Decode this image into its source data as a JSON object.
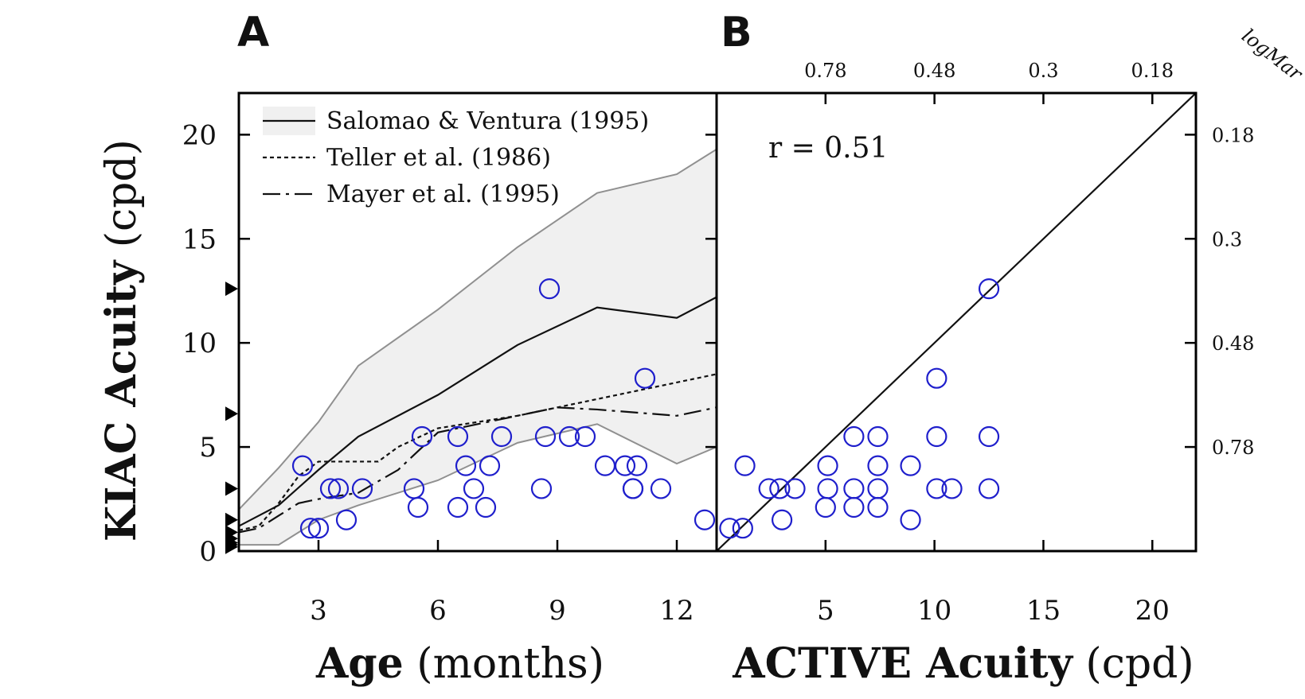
{
  "chart_data": [
    {
      "panel": "A",
      "type": "line",
      "xlabel_bold": "Age",
      "xlabel_rest": " (months)",
      "ylabel_bold": "KIAC Acuity",
      "ylabel_rest": " (cpd)",
      "xlim": [
        1,
        13
      ],
      "ylim": [
        0,
        22
      ],
      "xticks": [
        3,
        6,
        9,
        12
      ],
      "yticks": [
        0,
        5,
        10,
        15,
        20
      ],
      "legend": {
        "position": "top-left",
        "entries": [
          "Salomao & Ventura (1995)",
          "Teller et al. (1986)",
          "Mayer et al. (1995)"
        ]
      },
      "band": {
        "name": "Salomao & Ventura (1995)",
        "x": [
          1,
          2,
          3,
          4,
          6,
          8,
          10,
          12,
          13
        ],
        "upper": [
          2.0,
          4.0,
          6.2,
          8.9,
          11.6,
          14.6,
          17.2,
          18.1,
          19.3
        ],
        "lower": [
          0.3,
          0.3,
          1.5,
          2.2,
          3.4,
          5.2,
          6.1,
          4.2,
          5.0
        ]
      },
      "series": [
        {
          "name": "Salomao & Ventura (1995)",
          "style": "solid",
          "x": [
            1,
            2,
            3,
            4,
            6,
            8,
            10,
            12,
            13
          ],
          "y": [
            1.2,
            2.2,
            3.9,
            5.5,
            7.5,
            9.9,
            11.7,
            11.2,
            12.2
          ]
        },
        {
          "name": "Teller et al. (1986)",
          "style": "dotted",
          "x": [
            1,
            1.5,
            2,
            2.5,
            3,
            3.5,
            4,
            4.5,
            5,
            6,
            8,
            10,
            13
          ],
          "y": [
            1.0,
            1.2,
            2.3,
            3.6,
            4.3,
            4.3,
            4.3,
            4.3,
            5.0,
            5.9,
            6.5,
            7.3,
            8.5
          ]
        },
        {
          "name": "Mayer et al. (1995)",
          "style": "dashdot",
          "x": [
            1,
            1.5,
            2,
            2.5,
            3,
            4,
            5,
            6,
            7,
            8,
            9,
            10,
            12,
            13
          ],
          "y": [
            0.9,
            1.1,
            1.7,
            2.3,
            2.5,
            2.8,
            3.9,
            5.7,
            6.1,
            6.5,
            6.9,
            6.8,
            6.5,
            6.9
          ]
        }
      ],
      "points": [
        [
          2.6,
          4.1
        ],
        [
          2.8,
          1.1
        ],
        [
          3.0,
          1.1
        ],
        [
          3.3,
          3.0
        ],
        [
          3.5,
          3.0
        ],
        [
          3.7,
          1.5
        ],
        [
          4.1,
          3.0
        ],
        [
          5.4,
          3.0
        ],
        [
          5.5,
          2.1
        ],
        [
          5.6,
          5.5
        ],
        [
          6.5,
          2.1
        ],
        [
          6.5,
          5.5
        ],
        [
          6.7,
          4.1
        ],
        [
          6.9,
          3.0
        ],
        [
          7.2,
          2.1
        ],
        [
          7.3,
          4.1
        ],
        [
          7.6,
          5.5
        ],
        [
          8.6,
          3.0
        ],
        [
          8.7,
          5.5
        ],
        [
          8.8,
          12.6
        ],
        [
          9.3,
          5.5
        ],
        [
          9.7,
          5.5
        ],
        [
          10.2,
          4.1
        ],
        [
          10.7,
          4.1
        ],
        [
          10.9,
          3.0
        ],
        [
          10.9,
          3.0
        ],
        [
          11.0,
          4.1
        ],
        [
          11.2,
          8.3
        ],
        [
          11.6,
          3.0
        ],
        [
          12.7,
          1.5
        ]
      ],
      "left_markers_y": [
        12.6,
        6.6,
        3.0,
        1.5,
        0.9,
        0.6,
        0.4,
        0.3,
        0.2
      ],
      "colors": {
        "points": "#1f1fcc",
        "band": "#f0f0f0",
        "band_edge": "#909090",
        "lines": "#111111"
      }
    },
    {
      "panel": "B",
      "type": "scatter",
      "xlabel_bold": "ACTIVE Acuity",
      "xlabel_rest": " (cpd)",
      "top_axis_label": "logMar",
      "xlim": [
        0,
        22
      ],
      "ylim": [
        0,
        22
      ],
      "xticks": [
        5,
        10,
        15,
        20
      ],
      "top_ticks": [
        {
          "label": "0.78",
          "cpd": 5
        },
        {
          "label": "0.48",
          "cpd": 10
        },
        {
          "label": "0.3",
          "cpd": 15
        },
        {
          "label": "0.18",
          "cpd": 20
        }
      ],
      "right_ticks": [
        {
          "label": "0.18",
          "cpd": 20
        },
        {
          "label": "0.3",
          "cpd": 15
        },
        {
          "label": "0.48",
          "cpd": 10
        },
        {
          "label": "0.78",
          "cpd": 5
        }
      ],
      "annotation": "r = 0.51",
      "identity_line": true,
      "points": [
        [
          0.6,
          1.1
        ],
        [
          1.2,
          1.1
        ],
        [
          1.3,
          4.1
        ],
        [
          2.4,
          3.0
        ],
        [
          2.9,
          3.0
        ],
        [
          3.0,
          1.5
        ],
        [
          3.6,
          3.0
        ],
        [
          5.0,
          2.1
        ],
        [
          5.1,
          3.0
        ],
        [
          5.1,
          4.1
        ],
        [
          6.3,
          2.1
        ],
        [
          6.3,
          3.0
        ],
        [
          6.3,
          5.5
        ],
        [
          7.4,
          2.1
        ],
        [
          7.4,
          3.0
        ],
        [
          7.4,
          4.1
        ],
        [
          7.4,
          5.5
        ],
        [
          8.9,
          1.5
        ],
        [
          8.9,
          4.1
        ],
        [
          10.1,
          3.0
        ],
        [
          10.1,
          5.5
        ],
        [
          10.1,
          8.3
        ],
        [
          10.8,
          3.0
        ],
        [
          12.5,
          3.0
        ],
        [
          12.5,
          5.5
        ],
        [
          12.5,
          12.6
        ]
      ],
      "colors": {
        "points": "#1f1fcc",
        "lines": "#111111"
      }
    }
  ]
}
